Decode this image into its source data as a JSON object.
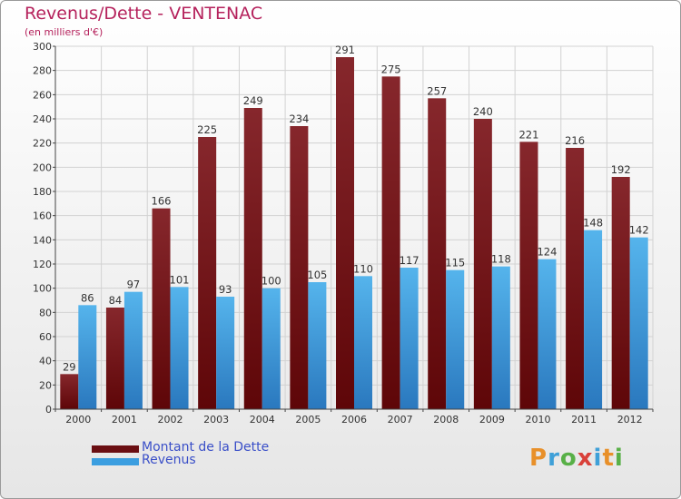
{
  "title": "Revenus/Dette - VENTENAC",
  "subtitle": "(en milliers d'€)",
  "logo": {
    "letters": [
      {
        "ch": "P",
        "color": "#e8902a"
      },
      {
        "ch": "r",
        "color": "#3fa0d8"
      },
      {
        "ch": "o",
        "color": "#58b047"
      },
      {
        "ch": "x",
        "color": "#d9413a"
      },
      {
        "ch": "i",
        "color": "#3fa0d8"
      },
      {
        "ch": "t",
        "color": "#e8902a"
      },
      {
        "ch": "i",
        "color": "#58b047"
      }
    ]
  },
  "chart_data": {
    "type": "bar",
    "categories": [
      "2000",
      "2001",
      "2002",
      "2003",
      "2004",
      "2005",
      "2006",
      "2007",
      "2008",
      "2009",
      "2010",
      "2011",
      "2012"
    ],
    "series": [
      {
        "name": "Montant de la Dette",
        "color": "#7a1418",
        "values": [
          29,
          84,
          166,
          225,
          249,
          234,
          291,
          275,
          257,
          240,
          221,
          216,
          192
        ]
      },
      {
        "name": "Revenus",
        "color": "#3b9ee0",
        "values": [
          86,
          97,
          101,
          93,
          100,
          105,
          110,
          117,
          115,
          118,
          124,
          148,
          142
        ]
      }
    ],
    "yticks": [
      0,
      20,
      40,
      60,
      80,
      100,
      120,
      140,
      160,
      180,
      200,
      220,
      240,
      260,
      280,
      300
    ],
    "ylim": [
      0,
      300
    ],
    "grid": true,
    "legend": "bottom-left"
  }
}
